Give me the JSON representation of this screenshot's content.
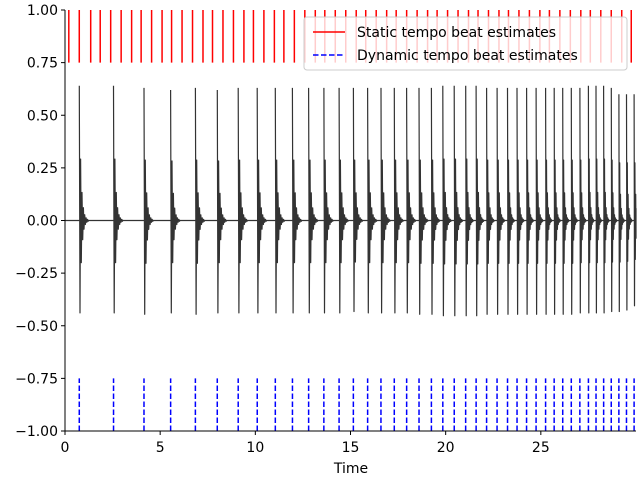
{
  "chart_data": {
    "type": "line",
    "xlabel": "Time",
    "ylabel": "",
    "xlim": [
      0,
      30
    ],
    "ylim": [
      -1.0,
      1.0
    ],
    "xticks": [
      0,
      5,
      10,
      15,
      20,
      25
    ],
    "xtick_labels": [
      "0",
      "5",
      "10",
      "15",
      "20",
      "25"
    ],
    "yticks": [
      -1.0,
      -0.75,
      -0.5,
      -0.25,
      0.0,
      0.25,
      0.5,
      0.75,
      1.0
    ],
    "ytick_labels": [
      "−1.00",
      "−0.75",
      "−0.50",
      "−0.25",
      "0.00",
      "0.25",
      "0.50",
      "0.75",
      "1.00"
    ],
    "grid": false,
    "legend_position": "top-right",
    "series": [
      {
        "kind": "waveform",
        "color": "#333333",
        "onsets": [
          0.75,
          2.55,
          4.15,
          5.55,
          6.85,
          8.0,
          9.1,
          10.1,
          11.05,
          11.95,
          12.8,
          13.6,
          14.4,
          15.15,
          15.9,
          16.6,
          17.3,
          17.95,
          18.6,
          19.25,
          19.85,
          20.45,
          21.05,
          21.6,
          22.15,
          22.7,
          23.25,
          23.75,
          24.25,
          24.75,
          25.25,
          25.7,
          26.15,
          26.6,
          27.05,
          27.5,
          27.9,
          28.3,
          28.7,
          29.1,
          29.5,
          29.9
        ],
        "peaks_pos": [
          0.64,
          0.64,
          0.63,
          0.62,
          0.63,
          0.62,
          0.63,
          0.63,
          0.63,
          0.63,
          0.63,
          0.63,
          0.63,
          0.63,
          0.63,
          0.63,
          0.63,
          0.63,
          0.63,
          0.63,
          0.64,
          0.64,
          0.64,
          0.64,
          0.63,
          0.63,
          0.63,
          0.63,
          0.63,
          0.63,
          0.63,
          0.63,
          0.63,
          0.63,
          0.63,
          0.64,
          0.64,
          0.64,
          0.63,
          0.6,
          0.6,
          0.6
        ],
        "peaks_neg": [
          -0.65,
          -0.65,
          -0.66,
          -0.65,
          -0.66,
          -0.65,
          -0.65,
          -0.65,
          -0.65,
          -0.65,
          -0.65,
          -0.65,
          -0.65,
          -0.64,
          -0.65,
          -0.65,
          -0.65,
          -0.65,
          -0.66,
          -0.66,
          -0.67,
          -0.67,
          -0.67,
          -0.67,
          -0.66,
          -0.66,
          -0.66,
          -0.66,
          -0.66,
          -0.66,
          -0.66,
          -0.66,
          -0.66,
          -0.66,
          -0.65,
          -0.65,
          -0.65,
          -0.65,
          -0.64,
          -0.64,
          -0.63,
          -0.6
        ]
      },
      {
        "name": "Static tempo beat estimates",
        "kind": "vlines",
        "color": "#ff0000",
        "linestyle": "solid",
        "ymin": 0.75,
        "ymax": 1.0,
        "x": [
          0.2,
          0.75,
          1.35,
          1.85,
          2.4,
          2.95,
          3.5,
          4.0,
          4.55,
          5.1,
          5.6,
          6.15,
          6.7,
          7.25,
          7.75,
          8.3,
          8.85,
          9.4,
          9.9,
          10.45,
          11.0,
          11.5,
          12.05,
          12.6,
          13.15,
          13.65,
          14.2,
          14.75,
          15.3,
          15.8,
          16.35,
          16.9,
          17.4,
          17.95,
          18.5,
          19.05,
          19.55,
          20.1,
          20.65,
          21.2,
          21.7,
          22.25,
          22.8,
          23.3,
          23.85,
          24.4,
          24.95,
          25.45,
          26.0,
          26.55,
          27.1,
          27.6,
          28.15,
          28.7,
          29.25,
          29.75
        ]
      },
      {
        "name": "Dynamic tempo beat estimates",
        "kind": "vlines",
        "color": "#0000ff",
        "linestyle": "dashed",
        "ymin": -1.0,
        "ymax": -0.75,
        "x": [
          0.75,
          2.55,
          4.15,
          5.55,
          6.85,
          8.0,
          9.1,
          10.1,
          11.05,
          11.95,
          12.8,
          13.6,
          14.4,
          15.15,
          15.9,
          16.6,
          17.3,
          17.95,
          18.6,
          19.25,
          19.85,
          20.45,
          21.05,
          21.6,
          22.15,
          22.7,
          23.25,
          23.75,
          24.25,
          24.75,
          25.25,
          25.7,
          26.15,
          26.6,
          27.05,
          27.5,
          27.9,
          28.3,
          28.7,
          29.1,
          29.5,
          29.9
        ]
      }
    ]
  }
}
